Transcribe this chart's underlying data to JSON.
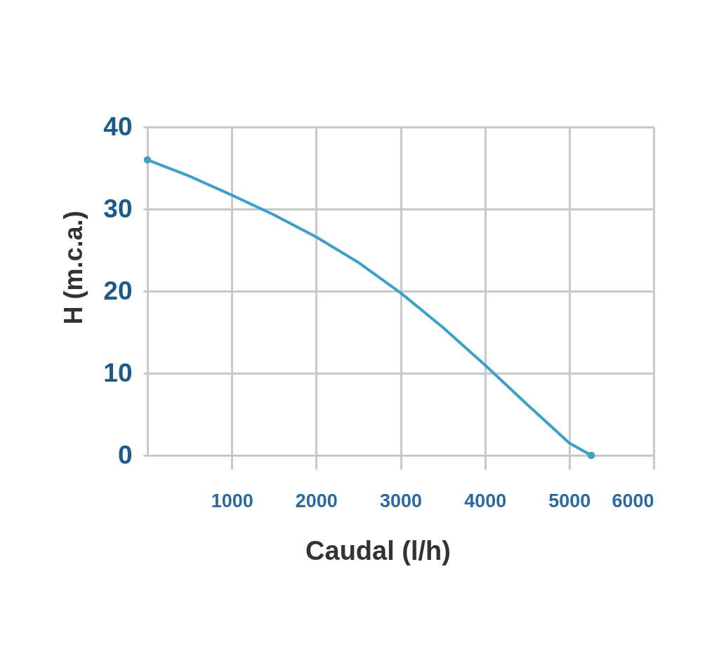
{
  "chart_data": {
    "type": "line",
    "xlabel": "Caudal (l/h)",
    "ylabel": "H (m.c.a.)",
    "xlim": [
      0,
      6000
    ],
    "xticks": [
      1000,
      2000,
      3000,
      4000,
      5000,
      6000
    ],
    "ylim": [
      0,
      40
    ],
    "yticks": [
      0,
      10,
      20,
      30,
      40
    ],
    "grid": true,
    "line_style": "solid",
    "series": [
      {
        "color": "#3ca0c8",
        "marker": "none",
        "x": [
          0,
          500,
          1000,
          1500,
          2000,
          2500,
          3000,
          3500,
          4000,
          4500,
          5000,
          5260
        ],
        "values": [
          36,
          34.0,
          31.7,
          29.3,
          26.6,
          23.5,
          19.8,
          15.6,
          11.0,
          6.2,
          1.5,
          0
        ]
      },
      {
        "type": "scatter",
        "color": "#3ca0c8",
        "marker": "circle",
        "x": [
          0,
          5260
        ],
        "values": [
          36,
          0
        ]
      }
    ]
  }
}
